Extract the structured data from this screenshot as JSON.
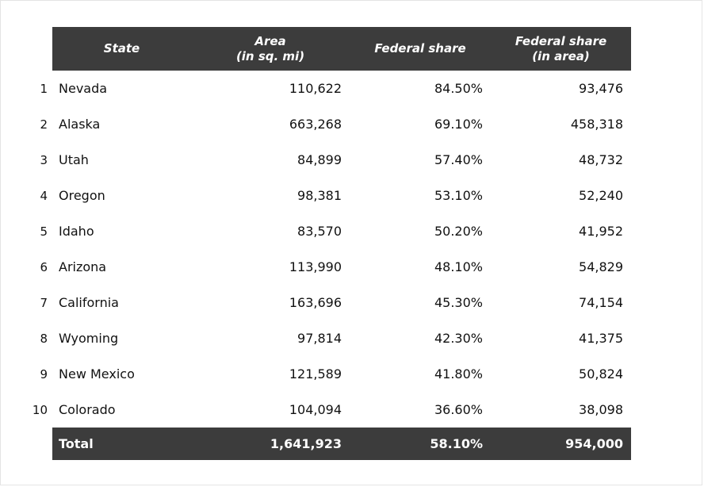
{
  "table": {
    "headers": {
      "state": "State",
      "area": "Area\n(in sq. mi)",
      "share": "Federal share",
      "share_area": "Federal share\n(in area)"
    },
    "rows": [
      {
        "rank": "1",
        "state": "Nevada",
        "area": "110,622",
        "share": "84.50%",
        "share_area": "93,476"
      },
      {
        "rank": "2",
        "state": "Alaska",
        "area": "663,268",
        "share": "69.10%",
        "share_area": "458,318"
      },
      {
        "rank": "3",
        "state": "Utah",
        "area": "84,899",
        "share": "57.40%",
        "share_area": "48,732"
      },
      {
        "rank": "4",
        "state": "Oregon",
        "area": "98,381",
        "share": "53.10%",
        "share_area": "52,240"
      },
      {
        "rank": "5",
        "state": "Idaho",
        "area": "83,570",
        "share": "50.20%",
        "share_area": "41,952"
      },
      {
        "rank": "6",
        "state": "Arizona",
        "area": "113,990",
        "share": "48.10%",
        "share_area": "54,829"
      },
      {
        "rank": "7",
        "state": "California",
        "area": "163,696",
        "share": "45.30%",
        "share_area": "74,154"
      },
      {
        "rank": "8",
        "state": "Wyoming",
        "area": "97,814",
        "share": "42.30%",
        "share_area": "41,375"
      },
      {
        "rank": "9",
        "state": "New Mexico",
        "area": "121,589",
        "share": "41.80%",
        "share_area": "50,824"
      },
      {
        "rank": "10",
        "state": "Colorado",
        "area": "104,094",
        "share": "36.60%",
        "share_area": "38,098"
      }
    ],
    "total": {
      "label": "Total",
      "area": "1,641,923",
      "share": "58.10%",
      "share_area": "954,000"
    }
  },
  "colors": {
    "header_bg": "#3c3c3c",
    "header_text": "#ffffff",
    "body_text": "#111111"
  },
  "chart_data": {
    "type": "table",
    "title": "",
    "columns": [
      "State",
      "Area (in sq. mi)",
      "Federal share",
      "Federal share (in area)"
    ],
    "rows": [
      [
        "Nevada",
        110622,
        "84.50%",
        93476
      ],
      [
        "Alaska",
        663268,
        "69.10%",
        458318
      ],
      [
        "Utah",
        84899,
        "57.40%",
        48732
      ],
      [
        "Oregon",
        98381,
        "53.10%",
        52240
      ],
      [
        "Idaho",
        83570,
        "50.20%",
        41952
      ],
      [
        "Arizona",
        113990,
        "48.10%",
        54829
      ],
      [
        "California",
        163696,
        "45.30%",
        74154
      ],
      [
        "Wyoming",
        97814,
        "42.30%",
        41375
      ],
      [
        "New Mexico",
        121589,
        "41.80%",
        50824
      ],
      [
        "Colorado",
        104094,
        "36.60%",
        38098
      ]
    ],
    "total_row": [
      "Total",
      1641923,
      "58.10%",
      954000
    ]
  }
}
